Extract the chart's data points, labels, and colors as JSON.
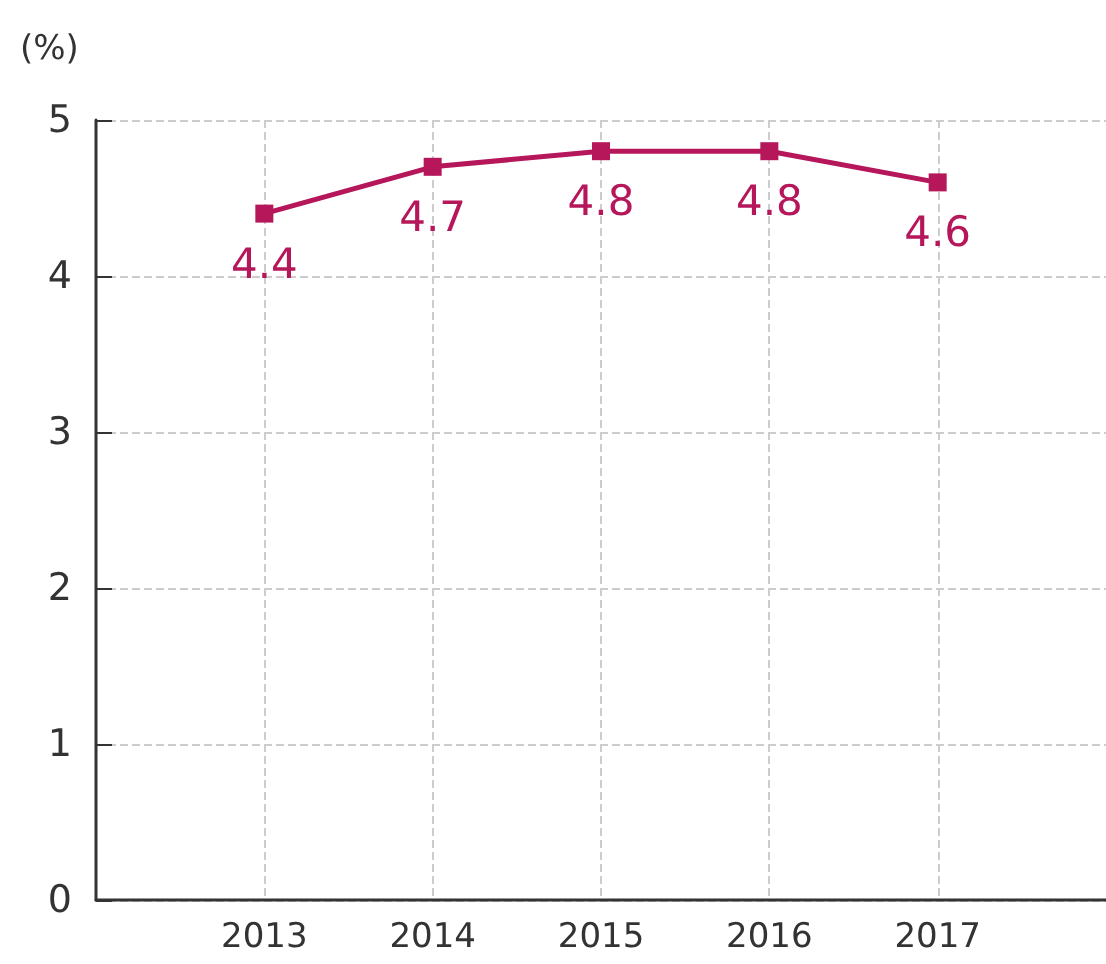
{
  "chart_data": {
    "type": "line",
    "ylabel": "(%)",
    "x": [
      2013,
      2014,
      2015,
      2016,
      2017
    ],
    "series": [
      {
        "color": "#b5175a",
        "values": [
          4.4,
          4.7,
          4.8,
          4.8,
          4.6
        ]
      }
    ],
    "xlim": [
      2012,
      2018
    ],
    "xticks": [
      2013,
      2014,
      2015,
      2016,
      2017
    ],
    "ylim": [
      0,
      5
    ],
    "yticks": [
      0,
      1,
      2,
      3,
      4,
      5
    ],
    "grid": true,
    "marker": "square",
    "line_style": "solid",
    "data_labels": true
  }
}
